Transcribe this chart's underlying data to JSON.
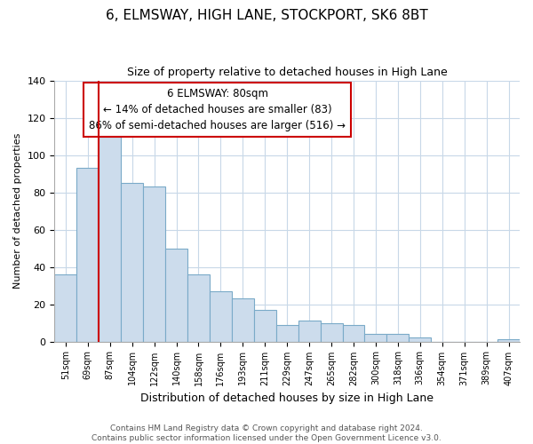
{
  "title": "6, ELMSWAY, HIGH LANE, STOCKPORT, SK6 8BT",
  "subtitle": "Size of property relative to detached houses in High Lane",
  "xlabel": "Distribution of detached houses by size in High Lane",
  "ylabel": "Number of detached properties",
  "bar_labels": [
    "51sqm",
    "69sqm",
    "87sqm",
    "104sqm",
    "122sqm",
    "140sqm",
    "158sqm",
    "176sqm",
    "193sqm",
    "211sqm",
    "229sqm",
    "247sqm",
    "265sqm",
    "282sqm",
    "300sqm",
    "318sqm",
    "336sqm",
    "354sqm",
    "371sqm",
    "389sqm",
    "407sqm"
  ],
  "bar_values": [
    36,
    93,
    110,
    85,
    83,
    50,
    36,
    27,
    23,
    17,
    9,
    11,
    10,
    9,
    4,
    4,
    2,
    0,
    0,
    0,
    1
  ],
  "bar_color": "#ccdcec",
  "bar_edge_color": "#7aaac8",
  "vline_color": "#cc0000",
  "vline_x_index": 2,
  "ylim": [
    0,
    140
  ],
  "yticks": [
    0,
    20,
    40,
    60,
    80,
    100,
    120,
    140
  ],
  "annotation_title": "6 ELMSWAY: 80sqm",
  "annotation_line1": "← 14% of detached houses are smaller (83)",
  "annotation_line2": "86% of semi-detached houses are larger (516) →",
  "annotation_box_facecolor": "#ffffff",
  "annotation_box_edgecolor": "#cc0000",
  "footer_line1": "Contains HM Land Registry data © Crown copyright and database right 2024.",
  "footer_line2": "Contains public sector information licensed under the Open Government Licence v3.0.",
  "background_color": "#ffffff",
  "grid_color": "#c8d8e8",
  "title_fontsize": 11,
  "subtitle_fontsize": 9,
  "ylabel_fontsize": 8,
  "xlabel_fontsize": 9
}
